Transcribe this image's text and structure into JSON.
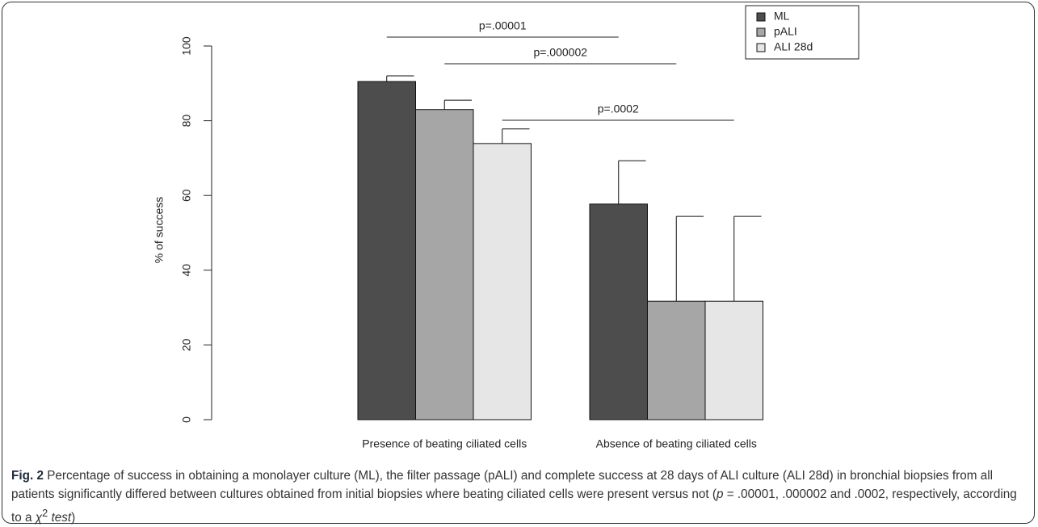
{
  "chart_data": {
    "type": "bar",
    "y_label": "% of success",
    "categories": [
      "Presence of beating ciliated cells",
      "Absence of beating ciliated cells"
    ],
    "series": [
      {
        "name": "ML",
        "color": "#4d4d4d",
        "values": [
          90.5,
          57.7
        ],
        "errors": [
          1.5,
          11.6
        ]
      },
      {
        "name": "pALI",
        "color": "#a6a6a6",
        "values": [
          83.0,
          31.7
        ],
        "errors": [
          2.5,
          22.7
        ]
      },
      {
        "name": "ALI 28d",
        "color": "#e6e6e6",
        "values": [
          73.9,
          31.7
        ],
        "errors": [
          3.9,
          22.7
        ]
      }
    ],
    "ylim": [
      0,
      100
    ],
    "yticks": [
      0,
      20,
      40,
      60,
      80,
      100
    ],
    "annotations": [
      "p=.00001",
      "p=.000002",
      "p=.0002"
    ],
    "legend": "top-right"
  },
  "caption": {
    "label": "Fig. 2",
    "text": "Percentage of success in obtaining a monolayer culture (ML), the filter passage (pALI) and complete success at 28 days of ALI culture (ALI 28d) in bronchial biopsies from all patients significantly differed between cultures obtained from initial biopsies where beating ciliated cells were present versus not (",
    "p": "p",
    "text2": " = .00001, .000002 and .0002, respectively, according to a ",
    "chi": "χ",
    "sup": "2",
    "test": " test",
    "end": ")"
  }
}
